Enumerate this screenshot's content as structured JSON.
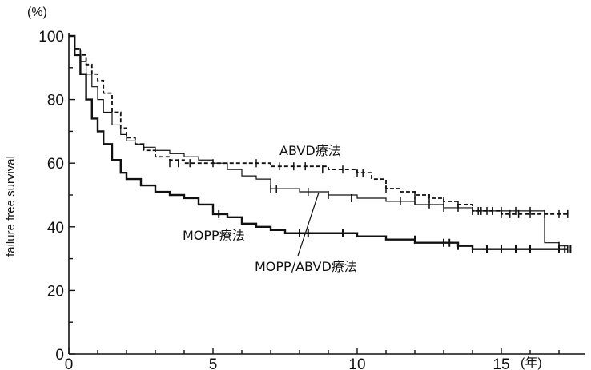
{
  "chart_data": {
    "type": "line",
    "title": "",
    "xlabel": "",
    "ylabel": "failure free survival",
    "x_unit": "(年)",
    "y_unit": "(%)",
    "xlim": [
      0,
      17.5
    ],
    "ylim": [
      0,
      100
    ],
    "x_ticks": [
      0,
      5,
      10,
      15
    ],
    "x_tick_labels": [
      "0",
      "5",
      "10",
      "15"
    ],
    "y_ticks": [
      0,
      20,
      40,
      60,
      80,
      100
    ],
    "y_tick_labels": [
      "0",
      "20",
      "40",
      "60",
      "80",
      "100"
    ],
    "grid": false,
    "series": [
      {
        "name": "ABVD療法",
        "style": "dashed",
        "color": "#111111",
        "x": [
          0,
          0.2,
          0.4,
          0.6,
          0.8,
          1.0,
          1.2,
          1.5,
          1.8,
          2.0,
          2.3,
          2.6,
          3.0,
          3.5,
          4.0,
          5.0,
          6.0,
          7.0,
          8.0,
          9.0,
          10.0,
          10.5,
          11.0,
          11.5,
          12.0,
          12.5,
          13.0,
          13.5,
          14.0,
          15.0,
          16.0,
          16.5,
          17.0,
          17.3
        ],
        "y": [
          100,
          96,
          94,
          91,
          88,
          86,
          82,
          76,
          71,
          68,
          66,
          64,
          62,
          61,
          60,
          60,
          60,
          59,
          59,
          58,
          57,
          55,
          52,
          51,
          50,
          49,
          48,
          47,
          45,
          44,
          44,
          44,
          44,
          44
        ],
        "censor_x": [
          3.5,
          3.8,
          4.2,
          5.0,
          6.5,
          7.3,
          7.8,
          8.2,
          8.8,
          9.5,
          10.0,
          10.2,
          11.0,
          12.0,
          12.5,
          13.0,
          13.5,
          14.0,
          14.2,
          14.5,
          15.0,
          15.3,
          15.6,
          16.0,
          16.5,
          17.0,
          17.3
        ],
        "censor_y": [
          60,
          60,
          60,
          60,
          60,
          59,
          59,
          59,
          58,
          58,
          57,
          57,
          52,
          50,
          49,
          48,
          47,
          45,
          45,
          45,
          44,
          44,
          44,
          44,
          44,
          44,
          44
        ]
      },
      {
        "name": "MOPP/ABVD療法",
        "style": "solid-thin",
        "color": "#111111",
        "x": [
          0,
          0.2,
          0.4,
          0.6,
          0.8,
          1.0,
          1.2,
          1.5,
          1.8,
          2.0,
          2.3,
          2.6,
          3.0,
          3.5,
          4.0,
          4.5,
          5.0,
          5.5,
          6.0,
          6.5,
          7.0,
          8.0,
          9.0,
          10.0,
          11.0,
          12.0,
          13.0,
          14.0,
          15.0,
          16.0,
          16.4,
          16.5,
          17.0,
          17.3
        ],
        "y": [
          100,
          96,
          92,
          88,
          84,
          80,
          76,
          72,
          69,
          67,
          66,
          65,
          64,
          63,
          62,
          61,
          60,
          58,
          56,
          55,
          52,
          51,
          50,
          49,
          48,
          47,
          46,
          45,
          45,
          45,
          45,
          35,
          34,
          33
        ],
        "censor_x": [
          7.0,
          7.2,
          8.3,
          9.0,
          9.8,
          11.5,
          12.0,
          12.5,
          13.0,
          13.5,
          14.0,
          14.3,
          14.7,
          15.0,
          15.5,
          16.0,
          17.0,
          17.3
        ],
        "censor_y": [
          52,
          52,
          51,
          50,
          49,
          48,
          48,
          47,
          46,
          46,
          45,
          45,
          45,
          45,
          45,
          45,
          34,
          33
        ]
      },
      {
        "name": "MOPP療法",
        "style": "solid-thick",
        "color": "#111111",
        "x": [
          0,
          0.2,
          0.4,
          0.6,
          0.8,
          1.0,
          1.2,
          1.5,
          1.8,
          2.0,
          2.5,
          3.0,
          3.5,
          4.0,
          4.5,
          5.0,
          5.5,
          6.0,
          6.5,
          7.0,
          7.5,
          8.0,
          9.0,
          10.0,
          11.0,
          12.0,
          13.0,
          13.5,
          14.0,
          15.0,
          16.0,
          17.0,
          17.3
        ],
        "y": [
          100,
          94,
          88,
          80,
          74,
          70,
          66,
          61,
          57,
          55,
          53,
          51,
          50,
          49,
          47,
          44,
          43,
          41,
          40,
          39,
          38,
          38,
          38,
          37,
          36,
          35,
          35,
          34,
          33,
          33,
          33,
          33,
          33
        ],
        "censor_x": [
          5.2,
          8.0,
          8.3,
          9.5,
          12.0,
          13.0,
          13.2,
          13.5,
          14.0,
          14.5,
          15.0,
          15.5,
          16.0,
          17.0,
          17.2,
          17.4
        ],
        "censor_y": [
          44,
          38,
          38,
          38,
          36,
          35,
          35,
          34,
          33,
          33,
          33,
          33,
          33,
          33,
          33,
          33
        ]
      }
    ]
  }
}
